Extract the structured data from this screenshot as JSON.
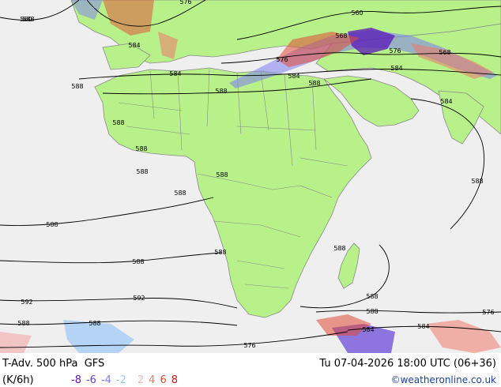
{
  "title": {
    "product": "T-Adv. 500 hPa",
    "model": "GFS",
    "units": "(K/6h)",
    "valid_time": "Tu 07-04-2026 18:00 UTC (06+36)"
  },
  "legend": [
    {
      "value": "-8",
      "color": "#5a16b8"
    },
    {
      "value": "-6",
      "color": "#6440d8"
    },
    {
      "value": "-4",
      "color": "#7e7ef0"
    },
    {
      "value": "-2",
      "color": "#9cc8f6"
    },
    {
      "value": "2",
      "color": "#f4b4b4"
    },
    {
      "value": "4",
      "color": "#ee7a6a"
    },
    {
      "value": "6",
      "color": "#e04a34"
    },
    {
      "value": "8",
      "color": "#c81a10"
    }
  ],
  "credit": "©weatheronline.co.uk",
  "contour_labels": [
    "560",
    "576",
    "560",
    "568",
    "576",
    "568",
    "584",
    "576",
    "584",
    "588",
    "584",
    "588",
    "584",
    "588",
    "588",
    "588",
    "588",
    "588",
    "588",
    "588",
    "588",
    "588",
    "588",
    "588",
    "592",
    "592",
    "588",
    "588",
    "584",
    "584",
    "576",
    "576",
    "588",
    "584",
    "588",
    "588"
  ],
  "colors": {
    "land": "#b8f08a",
    "sea": "#efefef",
    "border": "#8a8a8a",
    "contour": "#000000"
  }
}
